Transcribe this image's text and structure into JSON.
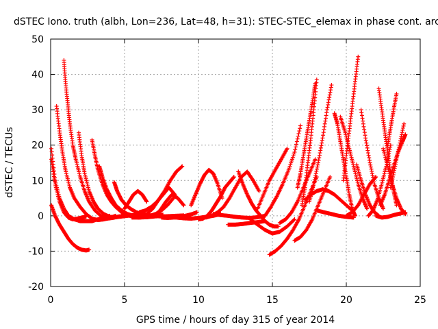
{
  "chart_data": {
    "type": "scatter",
    "title": "dSTEC Iono. truth (albh, Lon=236, Lat=48, h=31): STEC-STEC_elemax in phase cont. arc",
    "xlabel": "GPS time / hours of day 315 of year 2014",
    "ylabel": "dSTEC  / TECUs",
    "xlim": [
      0,
      25
    ],
    "ylim": [
      -20,
      50
    ],
    "xticks": [
      0,
      5,
      10,
      15,
      20,
      25
    ],
    "yticks": [
      -20,
      -10,
      0,
      10,
      20,
      30,
      40,
      50
    ],
    "grid": true,
    "marker": "+",
    "color": "#ff0000",
    "series": [
      {
        "x": [
          0.05,
          0.3,
          0.6,
          0.9,
          1.2,
          1.5,
          1.8,
          2.1,
          2.4,
          2.6
        ],
        "y": [
          3,
          0,
          -2.5,
          -4.5,
          -6.5,
          -8,
          -9,
          -9.6,
          -9.8,
          -9.6
        ]
      },
      {
        "x": [
          0.05,
          0.3,
          0.6,
          0.9,
          1.2,
          1.6,
          2.0,
          2.4,
          2.8,
          3.2,
          3.6,
          4.0
        ],
        "y": [
          19,
          10,
          5,
          2,
          0,
          -1,
          -1.5,
          -1.5,
          -1.5,
          -1,
          -0.5,
          0
        ]
      },
      {
        "x": [
          0.05,
          0.3,
          0.6,
          0.9,
          1.2,
          1.5,
          1.8,
          2.1,
          2.4
        ],
        "y": [
          16,
          9,
          4,
          1,
          -0.5,
          -1,
          -0.8,
          -0.5,
          -0.2
        ]
      },
      {
        "x": [
          0.4,
          0.6,
          0.8,
          1.0,
          1.3,
          1.6,
          2.0,
          2.4,
          2.8,
          3.2,
          3.6,
          4.0,
          4.4
        ],
        "y": [
          31,
          24,
          18,
          13,
          8,
          5,
          2.5,
          0.5,
          -0.8,
          -1.2,
          -1,
          -0.6,
          0
        ]
      },
      {
        "x": [
          0.9,
          1.0,
          1.15,
          1.3,
          1.5,
          1.7,
          2.0,
          2.3,
          2.6,
          3.0,
          3.4,
          3.8,
          4.2,
          4.6,
          5.0
        ],
        "y": [
          44,
          38,
          32,
          26,
          20,
          16,
          11,
          7,
          4,
          1.5,
          0,
          -0.8,
          -0.6,
          -0.2,
          0
        ]
      },
      {
        "x": [
          1.9,
          2.1,
          2.3,
          2.6,
          2.9,
          3.2,
          3.6,
          4.0,
          4.4,
          4.8,
          5.2,
          5.6,
          6.0
        ],
        "y": [
          23.5,
          17,
          12,
          7,
          4,
          2,
          0.5,
          -0.3,
          -0.4,
          -0.2,
          0,
          0.2,
          0.4
        ]
      },
      {
        "x": [
          2.8,
          3.0,
          3.2,
          3.5,
          3.8,
          4.1,
          4.4,
          4.8,
          5.2,
          5.6,
          6.0,
          6.4,
          6.8,
          7.2,
          7.6
        ],
        "y": [
          21.5,
          17,
          13,
          9,
          6,
          4,
          2.5,
          1,
          0.2,
          -0.3,
          -0.5,
          -0.4,
          -0.2,
          0,
          0.3
        ]
      },
      {
        "x": [
          3.3,
          3.5,
          3.8,
          4.1,
          4.4,
          4.8,
          5.2,
          5.6,
          6.0,
          6.5,
          7.0,
          7.5
        ],
        "y": [
          14,
          11,
          7.5,
          5,
          3,
          1.5,
          0.5,
          0,
          -0.3,
          -0.4,
          -0.2,
          0
        ]
      },
      {
        "x": [
          4.3,
          4.5,
          4.8,
          5.1,
          5.4,
          5.8,
          6.2,
          6.6,
          7.0,
          7.5,
          8.0,
          8.5,
          9.0
        ],
        "y": [
          9.5,
          7,
          4.5,
          3,
          2,
          1,
          0.5,
          0.2,
          0,
          -0.2,
          -0.1,
          0,
          0.1
        ]
      },
      {
        "x": [
          5.0,
          5.3,
          5.6,
          5.9,
          6.2,
          6.5
        ],
        "y": [
          2,
          4,
          6,
          7,
          6,
          4
        ]
      },
      {
        "x": [
          5.5,
          5.9,
          6.3,
          6.7,
          7.1,
          7.5,
          7.9,
          8.3
        ],
        "y": [
          -0.5,
          -0.5,
          -0.3,
          0,
          0.5,
          1.5,
          3,
          5
        ]
      },
      {
        "x": [
          6.0,
          6.4,
          6.8,
          7.2,
          7.6,
          8.0,
          8.4
        ],
        "y": [
          1,
          1.5,
          2.5,
          4,
          6,
          8,
          6
        ]
      },
      {
        "x": [
          6.5,
          6.9,
          7.3,
          7.7,
          8.1,
          8.5,
          8.9
        ],
        "y": [
          0.5,
          2,
          4.5,
          7,
          10,
          12.5,
          14
        ]
      },
      {
        "x": [
          7.0,
          7.4,
          7.8,
          8.2,
          8.6,
          9.0
        ],
        "y": [
          0,
          1.5,
          4,
          6,
          5,
          3
        ]
      },
      {
        "x": [
          7.5,
          7.9,
          8.3,
          8.7,
          9.1,
          9.5,
          9.9
        ],
        "y": [
          -0.5,
          -0.6,
          -0.5,
          -0.3,
          0,
          0.4,
          1
        ]
      },
      {
        "x": [
          8.0,
          8.5,
          9.0,
          9.5,
          10.0,
          10.5,
          11.0,
          11.5
        ],
        "y": [
          -0.3,
          -0.5,
          -0.7,
          -0.8,
          -0.6,
          -0.3,
          0,
          0.5
        ]
      },
      {
        "x": [
          9.5,
          9.8,
          10.1,
          10.4,
          10.7,
          11.0,
          11.3,
          11.6
        ],
        "y": [
          3,
          6,
          9,
          11.5,
          13,
          12,
          9,
          5
        ]
      },
      {
        "x": [
          10.0,
          10.3,
          10.6,
          10.9,
          11.2,
          11.5,
          11.8,
          12.1,
          12.4
        ],
        "y": [
          -1,
          -0.8,
          0,
          1.5,
          3.5,
          5.5,
          8,
          9.5,
          11
        ]
      },
      {
        "x": [
          10.5,
          10.9,
          11.3,
          11.7,
          12.1,
          12.5,
          12.9,
          13.3,
          13.7,
          14.1
        ],
        "y": [
          -0.5,
          0,
          1,
          2.5,
          5,
          8,
          11,
          12.5,
          10,
          7
        ]
      },
      {
        "x": [
          11.0,
          11.5,
          12.0,
          12.5,
          13.0,
          13.5,
          14.0,
          14.5
        ],
        "y": [
          0.5,
          0.2,
          0,
          -0.3,
          -0.5,
          -0.6,
          -0.4,
          0
        ]
      },
      {
        "x": [
          12.0,
          12.5,
          13.0,
          13.5,
          14.0,
          14.5
        ],
        "y": [
          -2.5,
          -2.5,
          -2.3,
          -2,
          -1.8,
          -1.5
        ]
      },
      {
        "x": [
          12.7,
          13.0,
          13.3,
          13.6,
          13.9,
          14.2,
          14.5,
          14.8,
          15.1,
          15.4
        ],
        "y": [
          12.5,
          9,
          6,
          3.5,
          1.5,
          0,
          -1.5,
          -2.5,
          -3,
          -3
        ]
      },
      {
        "x": [
          13.5,
          14.0,
          14.5,
          15.0,
          15.5,
          16.0,
          16.5
        ],
        "y": [
          -1,
          -2.5,
          -4,
          -5,
          -4.5,
          -3,
          -1
        ]
      },
      {
        "x": [
          14.8,
          15.2,
          15.6,
          16.0,
          16.4,
          16.8,
          17.2,
          17.6,
          18.0
        ],
        "y": [
          -11,
          -10,
          -8.5,
          -6.5,
          -4,
          -1,
          3,
          7,
          11
        ]
      },
      {
        "x": [
          14.0,
          14.4,
          14.8,
          15.2,
          15.6,
          16.0
        ],
        "y": [
          2,
          6,
          10,
          13,
          16,
          19
        ]
      },
      {
        "x": [
          14.5,
          14.9,
          15.3,
          15.7,
          16.1,
          16.5,
          16.9
        ],
        "y": [
          0,
          2.5,
          5.5,
          9,
          13,
          18,
          25.5
        ]
      },
      {
        "x": [
          15.5,
          15.9,
          16.3,
          16.7,
          17.1,
          17.5,
          17.9
        ],
        "y": [
          -2,
          -1,
          1,
          4,
          8,
          12,
          16
        ]
      },
      {
        "x": [
          16.5,
          16.9,
          17.3,
          17.7,
          18.1,
          18.5,
          18.9
        ],
        "y": [
          -7,
          -6,
          -4,
          -1,
          3,
          7,
          11
        ]
      },
      {
        "x": [
          16.7,
          16.9,
          17.1,
          17.3,
          17.5,
          17.7,
          17.9
        ],
        "y": [
          8,
          12,
          17,
          22,
          27,
          32,
          37.5
        ]
      },
      {
        "x": [
          17.0,
          17.2,
          17.4,
          17.6,
          17.8,
          18.0
        ],
        "y": [
          3,
          8,
          15,
          22,
          30,
          38.5
        ]
      },
      {
        "x": [
          17.5,
          17.8,
          18.1,
          18.4,
          18.7,
          19.0
        ],
        "y": [
          4,
          9,
          15,
          22,
          30,
          37
        ]
      },
      {
        "x": [
          17.2,
          17.6,
          18.0,
          18.4,
          18.8,
          19.2,
          19.6,
          20.0,
          20.4
        ],
        "y": [
          4.5,
          6,
          7,
          7.5,
          7,
          6,
          4.5,
          3,
          1.5
        ]
      },
      {
        "x": [
          18.0,
          18.5,
          19.0,
          19.5,
          20.0,
          20.5
        ],
        "y": [
          1.5,
          1,
          0.5,
          0,
          -0.3,
          -0.5
        ]
      },
      {
        "x": [
          19.2,
          19.4,
          19.6,
          19.8,
          20.0,
          20.2,
          20.4,
          20.6
        ],
        "y": [
          29,
          26,
          21,
          16,
          11,
          6,
          2,
          0
        ]
      },
      {
        "x": [
          19.6,
          19.9,
          20.2,
          20.5,
          20.8,
          21.1,
          21.4
        ],
        "y": [
          28,
          24,
          19,
          14,
          9,
          5,
          2
        ]
      },
      {
        "x": [
          19.8,
          20.0,
          20.2,
          20.4,
          20.6,
          20.8
        ],
        "y": [
          10,
          17,
          24,
          31,
          38,
          45
        ]
      },
      {
        "x": [
          20.0,
          20.4,
          20.8,
          21.2,
          21.6,
          22.0
        ],
        "y": [
          0,
          1,
          3,
          6,
          9,
          11
        ]
      },
      {
        "x": [
          20.7,
          21.0,
          21.3,
          21.6,
          21.9,
          22.2
        ],
        "y": [
          14.5,
          10,
          6,
          3,
          1,
          0
        ]
      },
      {
        "x": [
          21.0,
          21.3,
          21.6,
          21.9,
          22.2,
          22.5
        ],
        "y": [
          30,
          22,
          15,
          9,
          5,
          2
        ]
      },
      {
        "x": [
          21.5,
          21.8,
          22.1,
          22.4,
          22.7,
          23.0
        ],
        "y": [
          0,
          1.5,
          4.5,
          9,
          14,
          20
        ]
      },
      {
        "x": [
          22.2,
          22.4,
          22.6,
          22.8,
          23.0,
          23.2,
          23.4
        ],
        "y": [
          36,
          30,
          24,
          18,
          12,
          7,
          3
        ]
      },
      {
        "x": [
          22.3,
          22.6,
          22.9,
          23.2,
          23.5,
          23.8,
          24.0
        ],
        "y": [
          3,
          6,
          10,
          14,
          18,
          21,
          23
        ]
      },
      {
        "x": [
          22.5,
          22.8,
          23.1,
          23.4,
          23.7,
          24.0
        ],
        "y": [
          19,
          14,
          9,
          5,
          2,
          0.5
        ]
      },
      {
        "x": [
          22.8,
          23.0,
          23.2,
          23.4
        ],
        "y": [
          20,
          25,
          30,
          34.5
        ]
      },
      {
        "x": [
          23.0,
          23.3,
          23.6,
          23.9
        ],
        "y": [
          8,
          14,
          20,
          26
        ]
      },
      {
        "x": [
          22.0,
          22.4,
          22.8,
          23.2,
          23.6,
          24.0
        ],
        "y": [
          0,
          -0.5,
          -0.3,
          0.2,
          0.6,
          1
        ]
      }
    ]
  }
}
